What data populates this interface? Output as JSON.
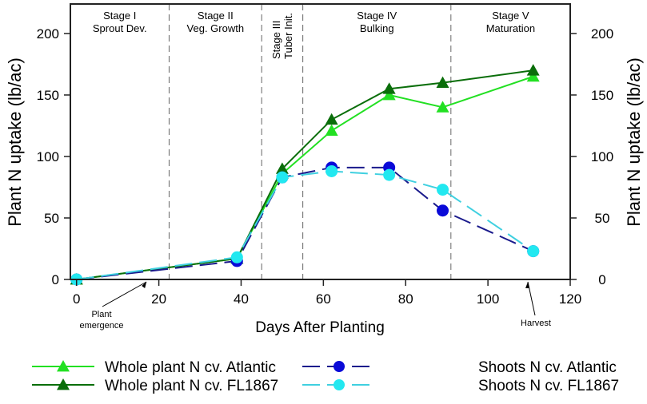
{
  "chart_data": {
    "type": "line",
    "xlabel": "Days After Planting",
    "ylabel": "Plant N uptake (lb/ac)",
    "ylabel_right": "Plant N uptake (lb/ac)",
    "xlim": [
      -1.5,
      120
    ],
    "ylim": [
      0,
      224
    ],
    "xticks": [
      0,
      20,
      40,
      60,
      80,
      100,
      120
    ],
    "yticks": [
      0,
      50,
      100,
      150,
      200
    ],
    "grid": false,
    "legend_position": "bottom",
    "stages": [
      {
        "line1": "Stage I",
        "line2": "Sprout Dev.",
        "start": -1.5,
        "end": 22.5,
        "vertical": false
      },
      {
        "line1": "Stage II",
        "line2": "Veg. Growth",
        "start": 22.5,
        "end": 45,
        "vertical": false
      },
      {
        "line1": "Stage III",
        "line2": "Tuber Init.",
        "start": 45,
        "end": 55,
        "vertical": true
      },
      {
        "line1": "Stage IV",
        "line2": "Bulking",
        "start": 55,
        "end": 91,
        "vertical": false
      },
      {
        "line1": "Stage V",
        "line2": "Maturation",
        "start": 91,
        "end": 120,
        "vertical": false
      }
    ],
    "annotations": [
      {
        "line1": "Plant",
        "line2": "emergence",
        "x": 17,
        "y": 0
      },
      {
        "line1": "Harvest",
        "line2": "",
        "x": 109.7,
        "y": 0
      }
    ],
    "series": [
      {
        "name": "Whole plant N cv. Atlantic",
        "color": "#22e022",
        "marker": "triangle",
        "dash": false,
        "x": [
          0,
          39,
          50,
          62,
          76,
          89,
          111
        ],
        "y": [
          0,
          17,
          86,
          121,
          150,
          140,
          165
        ]
      },
      {
        "name": "Whole plant N cv. FL1867",
        "color": "#0a6e0a",
        "marker": "triangle",
        "dash": false,
        "x": [
          0,
          39,
          50,
          62,
          76,
          89,
          111
        ],
        "y": [
          0,
          17,
          90,
          130,
          155,
          160,
          170
        ]
      },
      {
        "name": "Shoots N cv. Atlantic",
        "color": "#0a0ad8",
        "line_color": "#1a1a8c",
        "marker": "circle",
        "dash": true,
        "x": [
          0,
          39,
          50,
          62,
          76,
          89,
          111
        ],
        "y": [
          0,
          15,
          83,
          91,
          91,
          56,
          23
        ]
      },
      {
        "name": "Shoots N cv. FL1867",
        "color": "#22e8f0",
        "line_color": "#40d0e0",
        "marker": "circle",
        "dash": true,
        "x": [
          0,
          39,
          50,
          62,
          76,
          89,
          111
        ],
        "y": [
          0,
          18,
          83,
          88,
          85,
          73,
          23
        ]
      }
    ]
  }
}
